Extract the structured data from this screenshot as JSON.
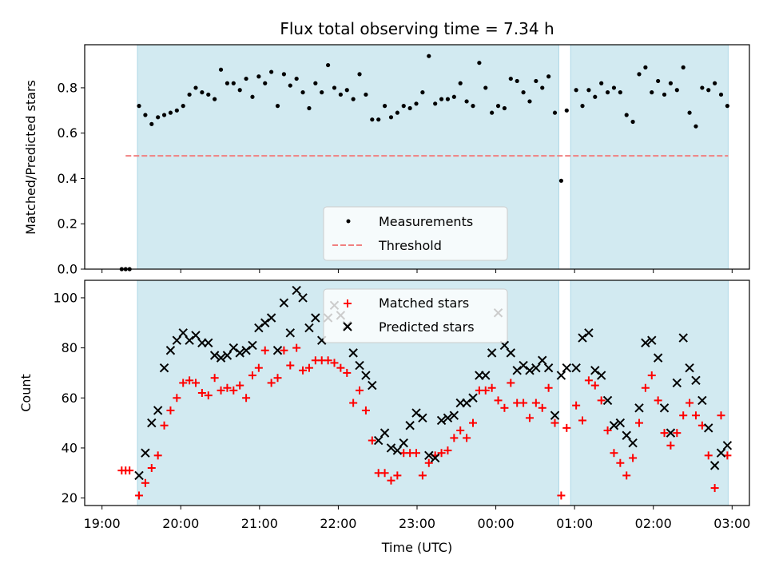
{
  "figure": {
    "title": "Flux total observing time = 7.34 h",
    "xlabel": "Time (UTC)"
  },
  "chart_data": [
    {
      "type": "scatter",
      "panel": "top",
      "ylabel": "Matched/Predicted stars",
      "xlim": [
        -0.22,
        8.22
      ],
      "ylim": [
        0,
        0.99
      ],
      "yticks": [
        0.0,
        0.2,
        0.4,
        0.6,
        0.8
      ],
      "xticks": [
        "19:00",
        "20:00",
        "21:00",
        "22:00",
        "23:00",
        "00:00",
        "01:00",
        "02:00",
        "03:00"
      ],
      "x_units": "hours after 19:00 UTC",
      "legend": {
        "position": "lower-center",
        "entries": [
          "Measurements",
          "Threshold"
        ]
      },
      "shaded_intervals": [
        [
          0.45,
          5.8
        ],
        [
          5.95,
          7.95
        ]
      ],
      "colors": {
        "shade": "#add8e6",
        "measurement": "#000000",
        "threshold": "#f08080"
      },
      "threshold": {
        "name": "Threshold",
        "value": 0.5,
        "x_range": [
          0.3,
          7.95
        ]
      },
      "series": [
        {
          "name": "Measurements",
          "x": [
            0.25,
            0.3,
            0.35,
            0.47,
            0.55,
            0.63,
            0.71,
            0.79,
            0.87,
            0.95,
            1.03,
            1.11,
            1.19,
            1.27,
            1.35,
            1.43,
            1.51,
            1.59,
            1.67,
            1.75,
            1.83,
            1.91,
            1.99,
            2.07,
            2.15,
            2.23,
            2.31,
            2.39,
            2.47,
            2.55,
            2.63,
            2.71,
            2.79,
            2.87,
            2.95,
            3.03,
            3.11,
            3.19,
            3.27,
            3.35,
            3.43,
            3.51,
            3.59,
            3.67,
            3.75,
            3.83,
            3.91,
            3.99,
            4.07,
            4.15,
            4.23,
            4.31,
            4.39,
            4.47,
            4.55,
            4.63,
            4.71,
            4.79,
            4.87,
            4.95,
            5.03,
            5.11,
            5.19,
            5.27,
            5.35,
            5.43,
            5.51,
            5.59,
            5.67,
            5.75,
            5.83,
            5.9,
            6.02,
            6.1,
            6.18,
            6.26,
            6.34,
            6.42,
            6.5,
            6.58,
            6.66,
            6.74,
            6.82,
            6.9,
            6.98,
            7.06,
            7.14,
            7.22,
            7.3,
            7.38,
            7.46,
            7.54,
            7.62,
            7.7,
            7.78,
            7.86,
            7.94
          ],
          "y": [
            0.0,
            0.0,
            0.0,
            0.72,
            0.68,
            0.64,
            0.67,
            0.68,
            0.69,
            0.7,
            0.72,
            0.77,
            0.8,
            0.78,
            0.77,
            0.75,
            0.88,
            0.82,
            0.82,
            0.79,
            0.84,
            0.76,
            0.85,
            0.82,
            0.87,
            0.72,
            0.86,
            0.81,
            0.84,
            0.78,
            0.71,
            0.82,
            0.78,
            0.9,
            0.8,
            0.77,
            0.79,
            0.75,
            0.86,
            0.77,
            0.66,
            0.66,
            0.72,
            0.67,
            0.69,
            0.72,
            0.71,
            0.73,
            0.78,
            0.94,
            0.73,
            0.75,
            0.75,
            0.76,
            0.82,
            0.74,
            0.72,
            0.91,
            0.8,
            0.69,
            0.72,
            0.71,
            0.84,
            0.83,
            0.78,
            0.74,
            0.83,
            0.8,
            0.85,
            0.69,
            0.39,
            0.7,
            0.79,
            0.72,
            0.79,
            0.76,
            0.82,
            0.78,
            0.8,
            0.78,
            0.68,
            0.65,
            0.86,
            0.89,
            0.78,
            0.83,
            0.77,
            0.82,
            0.79,
            0.89,
            0.69,
            0.63,
            0.8,
            0.79,
            0.82,
            0.77,
            0.72
          ]
        }
      ]
    },
    {
      "type": "scatter",
      "panel": "bottom",
      "ylabel": "Count",
      "xlim": [
        -0.22,
        8.22
      ],
      "ylim": [
        17,
        107
      ],
      "yticks": [
        20,
        40,
        60,
        80,
        100
      ],
      "xticks": [
        "19:00",
        "20:00",
        "21:00",
        "22:00",
        "23:00",
        "00:00",
        "01:00",
        "02:00",
        "03:00"
      ],
      "x_units": "hours after 19:00 UTC",
      "legend": {
        "position": "upper-center",
        "entries": [
          "Matched stars",
          "Predicted stars"
        ]
      },
      "shaded_intervals": [
        [
          0.45,
          5.8
        ],
        [
          5.95,
          7.95
        ]
      ],
      "colors": {
        "shade": "#add8e6",
        "matched": "#ff0000",
        "predicted": "#000000"
      },
      "series": [
        {
          "name": "Matched stars",
          "marker": "plus",
          "x": [
            0.25,
            0.3,
            0.35,
            0.47,
            0.55,
            0.63,
            0.71,
            0.79,
            0.87,
            0.95,
            1.03,
            1.11,
            1.19,
            1.27,
            1.35,
            1.43,
            1.51,
            1.59,
            1.67,
            1.75,
            1.83,
            1.91,
            1.99,
            2.07,
            2.15,
            2.23,
            2.31,
            2.39,
            2.47,
            2.55,
            2.63,
            2.71,
            2.79,
            2.87,
            2.95,
            3.03,
            3.11,
            3.19,
            3.27,
            3.35,
            3.43,
            3.51,
            3.59,
            3.67,
            3.75,
            3.83,
            3.91,
            3.99,
            4.07,
            4.15,
            4.23,
            4.31,
            4.39,
            4.47,
            4.55,
            4.63,
            4.71,
            4.79,
            4.87,
            4.95,
            5.03,
            5.11,
            5.19,
            5.27,
            5.35,
            5.43,
            5.51,
            5.59,
            5.67,
            5.75,
            5.83,
            5.9,
            6.02,
            6.1,
            6.18,
            6.26,
            6.34,
            6.42,
            6.5,
            6.58,
            6.66,
            6.74,
            6.82,
            6.9,
            6.98,
            7.06,
            7.14,
            7.22,
            7.3,
            7.38,
            7.46,
            7.54,
            7.62,
            7.7,
            7.78,
            7.86,
            7.94
          ],
          "y": [
            31,
            31,
            31,
            21,
            26,
            32,
            37,
            49,
            55,
            60,
            66,
            67,
            66,
            62,
            61,
            68,
            63,
            64,
            63,
            65,
            60,
            69,
            72,
            79,
            66,
            68,
            79,
            73,
            80,
            71,
            72,
            75,
            75,
            75,
            74,
            72,
            70,
            58,
            63,
            55,
            43,
            30,
            30,
            27,
            29,
            38,
            38,
            38,
            29,
            34,
            37,
            38,
            39,
            44,
            47,
            44,
            50,
            63,
            63,
            64,
            59,
            56,
            66,
            58,
            58,
            52,
            58,
            56,
            64,
            50,
            21,
            48,
            57,
            51,
            67,
            65,
            59,
            47,
            38,
            34,
            29,
            36,
            50,
            64,
            69,
            59,
            46,
            41,
            46,
            53,
            58,
            53,
            49,
            37,
            24,
            53,
            37
          ]
        },
        {
          "name": "Predicted stars",
          "marker": "cross",
          "x": [
            0.47,
            0.55,
            0.63,
            0.71,
            0.79,
            0.87,
            0.95,
            1.03,
            1.11,
            1.19,
            1.27,
            1.35,
            1.43,
            1.51,
            1.59,
            1.67,
            1.75,
            1.83,
            1.91,
            1.99,
            2.07,
            2.15,
            2.23,
            2.31,
            2.39,
            2.47,
            2.55,
            2.63,
            2.71,
            2.79,
            2.87,
            2.95,
            3.03,
            3.11,
            3.19,
            3.27,
            3.35,
            3.43,
            3.51,
            3.59,
            3.67,
            3.75,
            3.83,
            3.91,
            3.99,
            4.07,
            4.15,
            4.23,
            4.31,
            4.39,
            4.47,
            4.55,
            4.63,
            4.71,
            4.79,
            4.87,
            4.95,
            5.03,
            5.11,
            5.19,
            5.27,
            5.35,
            5.43,
            5.51,
            5.59,
            5.67,
            5.75,
            5.83,
            5.9,
            6.02,
            6.1,
            6.18,
            6.26,
            6.34,
            6.42,
            6.5,
            6.58,
            6.66,
            6.74,
            6.82,
            6.9,
            6.98,
            7.06,
            7.14,
            7.22,
            7.3,
            7.38,
            7.46,
            7.54,
            7.62,
            7.7,
            7.78,
            7.86,
            7.94
          ],
          "y": [
            29,
            38,
            50,
            55,
            72,
            79,
            83,
            86,
            83,
            85,
            82,
            82,
            77,
            76,
            77,
            80,
            78,
            79,
            81,
            88,
            90,
            92,
            79,
            98,
            86,
            103,
            100,
            88,
            92,
            83,
            92,
            97,
            93,
            89,
            78,
            73,
            69,
            65,
            43,
            46,
            40,
            39,
            42,
            49,
            54,
            52,
            37,
            36,
            51,
            52,
            53,
            58,
            58,
            60,
            69,
            69,
            78,
            94,
            81,
            78,
            71,
            73,
            71,
            72,
            75,
            72,
            53,
            69,
            72,
            72,
            84,
            86,
            71,
            69,
            59,
            49,
            50,
            45,
            42,
            56,
            82,
            83,
            76,
            56,
            46,
            66,
            84,
            72,
            67,
            59,
            48,
            33,
            38,
            41
          ]
        }
      ]
    }
  ]
}
